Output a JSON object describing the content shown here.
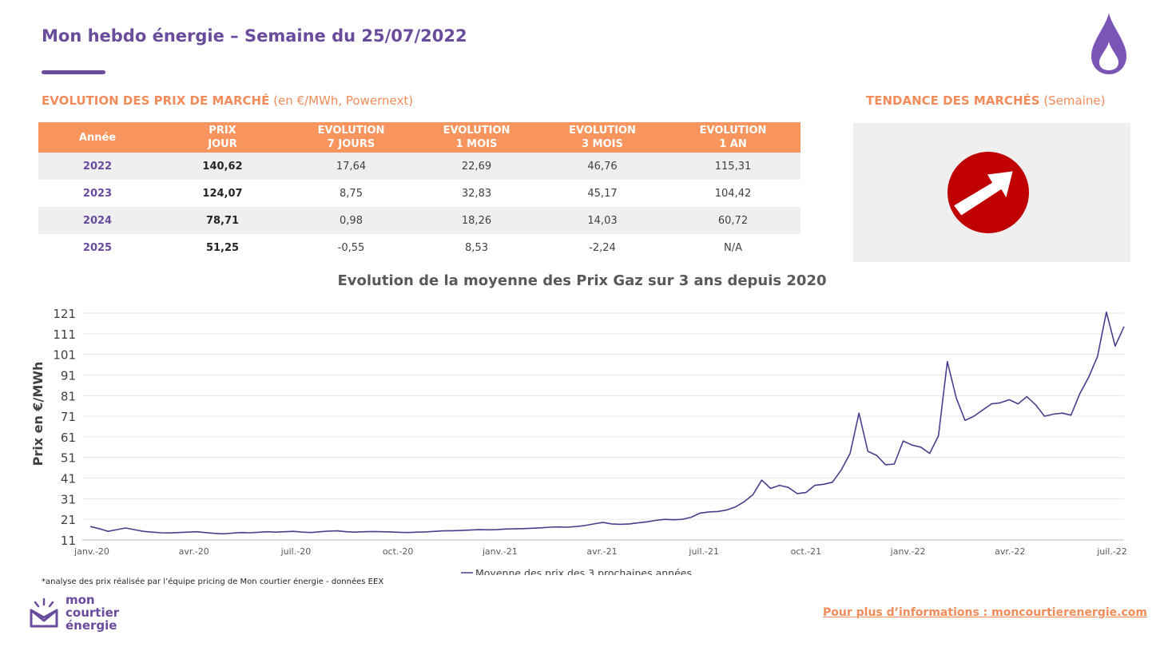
{
  "header": {
    "title": "Mon hebdo énergie – Semaine du 25/07/2022"
  },
  "sections": {
    "prices_title": "EVOLUTION DES PRIX DE MARCHÉ",
    "prices_unit": " (en €/MWh, Powernext)",
    "trend_title": "TENDANCE DES MARCHÉS",
    "trend_unit": " (Semaine)"
  },
  "table": {
    "headers": [
      [
        "Année"
      ],
      [
        "PRIX",
        "JOUR"
      ],
      [
        "EVOLUTION",
        "7 JOURS"
      ],
      [
        "EVOLUTION",
        "1 MOIS"
      ],
      [
        "EVOLUTION",
        "3 MOIS"
      ],
      [
        "EVOLUTION",
        "1 AN"
      ]
    ],
    "rows": [
      [
        "2022",
        "140,62",
        "17,64",
        "22,69",
        "46,76",
        "115,31"
      ],
      [
        "2023",
        "124,07",
        "8,75",
        "32,83",
        "45,17",
        "104,42"
      ],
      [
        "2024",
        "78,71",
        "0,98",
        "18,26",
        "14,03",
        "60,72"
      ],
      [
        "2025",
        "51,25",
        "-0,55",
        "8,53",
        "-2,24",
        "N/A"
      ]
    ]
  },
  "trend": {
    "icon": "arrow-up-right-icon",
    "direction": "up",
    "color": "#c00000"
  },
  "chart_data": {
    "type": "line",
    "title": "Evolution de la moyenne des Prix Gaz sur 3 ans depuis 2020",
    "xlabel": "",
    "ylabel": "Prix en €/MWh",
    "ylim": [
      11,
      121
    ],
    "yticks": [
      11,
      21,
      31,
      41,
      51,
      61,
      71,
      81,
      91,
      101,
      111,
      121
    ],
    "x_tick_labels": [
      "janv.-20",
      "avr.-20",
      "juil.-20",
      "oct.-20",
      "janv.-21",
      "avr.-21",
      "juil.-21",
      "oct.-21",
      "janv.-22",
      "avr.-22",
      "juil.-22"
    ],
    "grid": true,
    "legend_position": "bottom",
    "line_color": "#4b3d8c",
    "series": [
      {
        "name": "Moyenne des prix des 3 prochaines années",
        "values": [
          17.5,
          16.5,
          15.2,
          16.0,
          16.8,
          16.0,
          15.2,
          14.8,
          14.5,
          14.4,
          14.6,
          14.8,
          15.0,
          14.6,
          14.2,
          14.0,
          14.3,
          14.6,
          14.5,
          14.7,
          15.0,
          14.8,
          15.0,
          15.2,
          14.8,
          14.6,
          15.0,
          15.3,
          15.4,
          15.0,
          14.8,
          15.0,
          15.1,
          15.0,
          14.9,
          14.7,
          14.6,
          14.8,
          14.9,
          15.2,
          15.4,
          15.5,
          15.6,
          15.8,
          16.0,
          15.9,
          16.0,
          16.3,
          16.4,
          16.5,
          16.7,
          16.9,
          17.2,
          17.3,
          17.2,
          17.5,
          18.0,
          18.8,
          19.5,
          18.8,
          18.6,
          18.8,
          19.3,
          19.8,
          20.5,
          21.0,
          20.8,
          21.0,
          22.0,
          24.0,
          24.6,
          24.8,
          25.5,
          27.0,
          29.5,
          33.0,
          40.0,
          36.0,
          37.5,
          36.5,
          33.5,
          34.0,
          37.5,
          38.0,
          39.0,
          45.0,
          53.0,
          72.5,
          54.0,
          52.0,
          47.5,
          47.8,
          59.0,
          57.0,
          56.0,
          53.0,
          61.5,
          97.5,
          80.0,
          69.0,
          71.0,
          74.0,
          77.0,
          77.5,
          79.0,
          77.0,
          80.5,
          76.5,
          71.0,
          72.0,
          72.5,
          71.5,
          82.0,
          90.0,
          100.0,
          121.5,
          105.0,
          114.5
        ]
      }
    ]
  },
  "footnote": "*analyse des prix réalisée par l’équipe pricing de Mon courtier énergie -  données EEX",
  "brand": {
    "logo_lines": [
      "mon",
      "courtier",
      "énergie"
    ],
    "link_text": "Pour plus d’informations : moncourtierenergie.com",
    "primary_color": "#6a4c9c",
    "accent_color": "#f28c5b"
  }
}
